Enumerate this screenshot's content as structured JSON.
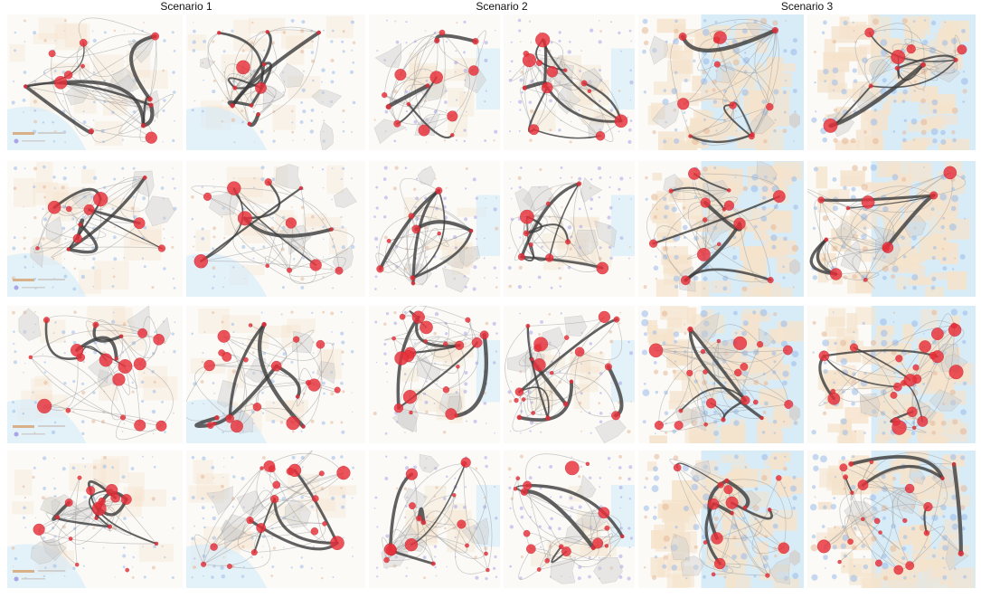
{
  "headers": {
    "scenario_1": "Scenario 1",
    "scenario_2": "Scenario 2",
    "scenario_3": "Scenario 3"
  },
  "colors": {
    "node": "#e8303a",
    "node_dark": "#c81e28",
    "flow": "#3b3b3b",
    "flow_light": "#9a9a9a",
    "land_tint": "#f5e3cc",
    "water": "#d8ecf8",
    "density_blue": "#9bbcea",
    "density_purple": "#a9a4e8",
    "hull": "#cfcfcf",
    "background": "#fbfaf7"
  },
  "layout_rows": 4,
  "layout_columns": 6,
  "scenario_columns": [
    [
      0,
      1
    ],
    [
      2,
      3
    ],
    [
      4,
      5
    ]
  ]
}
